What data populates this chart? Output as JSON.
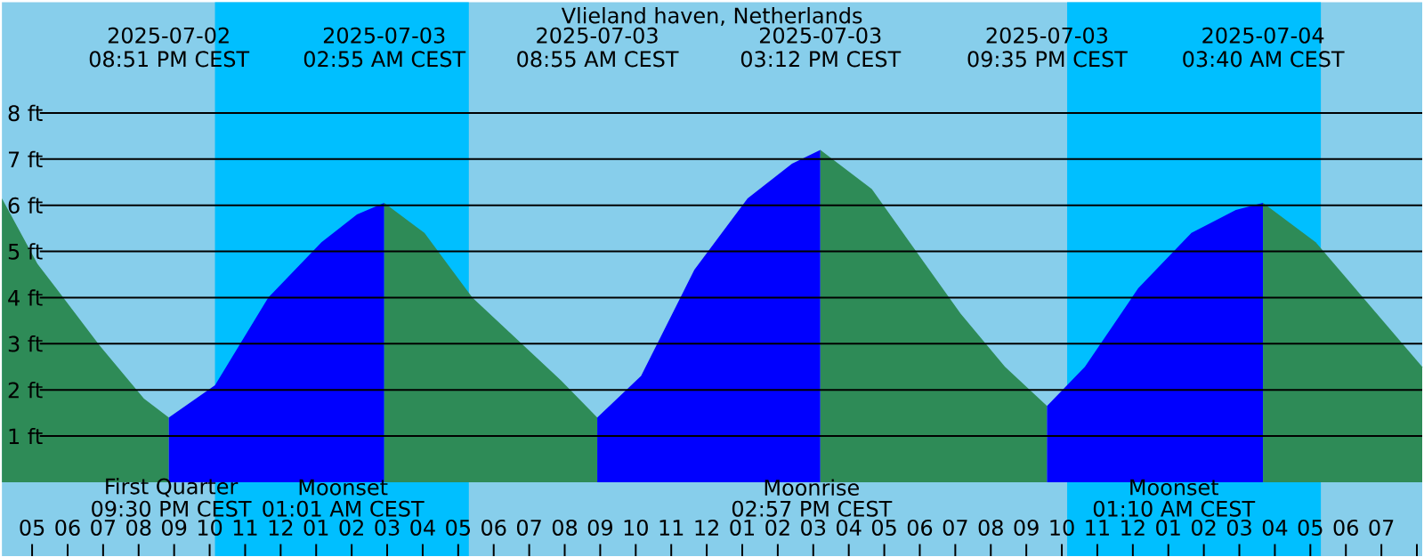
{
  "chart_data": {
    "type": "area",
    "title": "Vlieland haven, Netherlands",
    "xlim": [
      "2025-07-02T16:09",
      "2025-07-04T08:09"
    ],
    "ylim": [
      -1.6,
      10.4
    ],
    "xticks": [
      {
        "value": "2025-07-02T17:00",
        "label": "05"
      },
      {
        "value": "2025-07-02T18:00",
        "label": "06"
      },
      {
        "value": "2025-07-02T19:00",
        "label": "07"
      },
      {
        "value": "2025-07-02T20:00",
        "label": "08"
      },
      {
        "value": "2025-07-02T21:00",
        "label": "09"
      },
      {
        "value": "2025-07-02T22:00",
        "label": "10"
      },
      {
        "value": "2025-07-02T23:00",
        "label": "11"
      },
      {
        "value": "2025-07-03T00:00",
        "label": "12"
      },
      {
        "value": "2025-07-03T01:00",
        "label": "01"
      },
      {
        "value": "2025-07-03T02:00",
        "label": "02"
      },
      {
        "value": "2025-07-03T03:00",
        "label": "03"
      },
      {
        "value": "2025-07-03T04:00",
        "label": "04"
      },
      {
        "value": "2025-07-03T05:00",
        "label": "05"
      },
      {
        "value": "2025-07-03T06:00",
        "label": "06"
      },
      {
        "value": "2025-07-03T07:00",
        "label": "07"
      },
      {
        "value": "2025-07-03T08:00",
        "label": "08"
      },
      {
        "value": "2025-07-03T09:00",
        "label": "09"
      },
      {
        "value": "2025-07-03T10:00",
        "label": "10"
      },
      {
        "value": "2025-07-03T11:00",
        "label": "11"
      },
      {
        "value": "2025-07-03T12:00",
        "label": "12"
      },
      {
        "value": "2025-07-03T13:00",
        "label": "01"
      },
      {
        "value": "2025-07-03T14:00",
        "label": "02"
      },
      {
        "value": "2025-07-03T15:00",
        "label": "03"
      },
      {
        "value": "2025-07-03T16:00",
        "label": "04"
      },
      {
        "value": "2025-07-03T17:00",
        "label": "05"
      },
      {
        "value": "2025-07-03T18:00",
        "label": "06"
      },
      {
        "value": "2025-07-03T19:00",
        "label": "07"
      },
      {
        "value": "2025-07-03T20:00",
        "label": "08"
      },
      {
        "value": "2025-07-03T21:00",
        "label": "09"
      },
      {
        "value": "2025-07-03T22:00",
        "label": "10"
      },
      {
        "value": "2025-07-03T23:00",
        "label": "11"
      },
      {
        "value": "2025-07-04T00:00",
        "label": "12"
      },
      {
        "value": "2025-07-04T01:00",
        "label": "01"
      },
      {
        "value": "2025-07-04T02:00",
        "label": "02"
      },
      {
        "value": "2025-07-04T03:00",
        "label": "03"
      },
      {
        "value": "2025-07-04T04:00",
        "label": "04"
      },
      {
        "value": "2025-07-04T05:00",
        "label": "05"
      },
      {
        "value": "2025-07-04T06:00",
        "label": "06"
      },
      {
        "value": "2025-07-04T07:00",
        "label": "07"
      },
      {
        "value": "2025-07-04T08:00",
        "label": null
      }
    ],
    "yticks": [
      {
        "value": 1,
        "label": "1 ft"
      },
      {
        "value": 2,
        "label": "2 ft"
      },
      {
        "value": 3,
        "label": "3 ft"
      },
      {
        "value": 4,
        "label": "4 ft"
      },
      {
        "value": 5,
        "label": "5 ft"
      },
      {
        "value": 6,
        "label": "6 ft"
      },
      {
        "value": 7,
        "label": "7 ft"
      },
      {
        "value": 8,
        "label": "8 ft"
      }
    ],
    "grid": "y",
    "bands": [
      {
        "axis": "x",
        "from": "2025-07-02T22:09",
        "to": "2025-07-03T05:18",
        "color": "#00bfff"
      },
      {
        "axis": "x",
        "from": "2025-07-03T22:09",
        "to": "2025-07-04T05:18",
        "color": "#00bfff"
      }
    ],
    "series": [
      {
        "color": "#2e8b57",
        "x": [
          "2025-07-02T16:09",
          "2025-07-02T17:09",
          "2025-07-02T17:39",
          "2025-07-02T18:54",
          "2025-07-02T20:09",
          "2025-07-02T20:51"
        ],
        "values": [
          6.15,
          4.73,
          4.23,
          2.96,
          1.81,
          1.4
        ]
      },
      {
        "color": "#0000ff",
        "x": [
          "2025-07-02T20:51",
          "2025-07-02T22:09",
          "2025-07-02T23:39",
          "2025-07-03T01:09",
          "2025-07-03T02:09",
          "2025-07-03T02:55"
        ],
        "values": [
          1.4,
          2.1,
          4.0,
          5.2,
          5.8,
          6.05
        ]
      },
      {
        "color": "#2e8b57",
        "x": [
          "2025-07-03T02:55",
          "2025-07-03T04:03",
          "2025-07-03T05:24",
          "2025-07-03T06:39",
          "2025-07-03T07:54",
          "2025-07-03T08:55"
        ],
        "values": [
          6.05,
          5.4,
          4.0,
          3.1,
          2.2,
          1.4
        ]
      },
      {
        "color": "#0000ff",
        "x": [
          "2025-07-03T08:55",
          "2025-07-03T10:09",
          "2025-07-03T11:39",
          "2025-07-03T13:09",
          "2025-07-03T14:24",
          "2025-07-03T15:12"
        ],
        "values": [
          1.4,
          2.3,
          4.6,
          6.15,
          6.9,
          7.2
        ]
      },
      {
        "color": "#2e8b57",
        "x": [
          "2025-07-03T15:12",
          "2025-07-03T16:39",
          "2025-07-03T17:54",
          "2025-07-03T19:09",
          "2025-07-03T20:24",
          "2025-07-03T21:35"
        ],
        "values": [
          7.2,
          6.35,
          5.0,
          3.65,
          2.5,
          1.65
        ]
      },
      {
        "color": "#0000ff",
        "x": [
          "2025-07-03T21:35",
          "2025-07-03T22:39",
          "2025-07-04T00:09",
          "2025-07-04T01:39",
          "2025-07-04T02:54",
          "2025-07-04T03:40"
        ],
        "values": [
          1.65,
          2.5,
          4.2,
          5.4,
          5.9,
          6.05
        ]
      },
      {
        "color": "#2e8b57",
        "x": [
          "2025-07-04T03:40",
          "2025-07-04T05:09",
          "2025-07-04T06:39",
          "2025-07-04T08:09"
        ],
        "values": [
          6.05,
          5.2,
          3.85,
          2.5
        ]
      }
    ],
    "annotations": [
      "2025-07-02",
      "08:51 PM CEST",
      "2025-07-03",
      "02:55 AM CEST",
      "2025-07-03",
      "08:55 AM CEST",
      "2025-07-03",
      "03:12 PM CEST",
      "2025-07-03",
      "09:35 PM CEST",
      "2025-07-04",
      "03:40 AM CEST",
      "First Quarter",
      "09:30 PM CEST",
      "Moonset",
      "01:01 AM CEST",
      "Moonrise",
      "02:57 PM CEST",
      "Moonset",
      "01:10 AM CEST"
    ]
  }
}
